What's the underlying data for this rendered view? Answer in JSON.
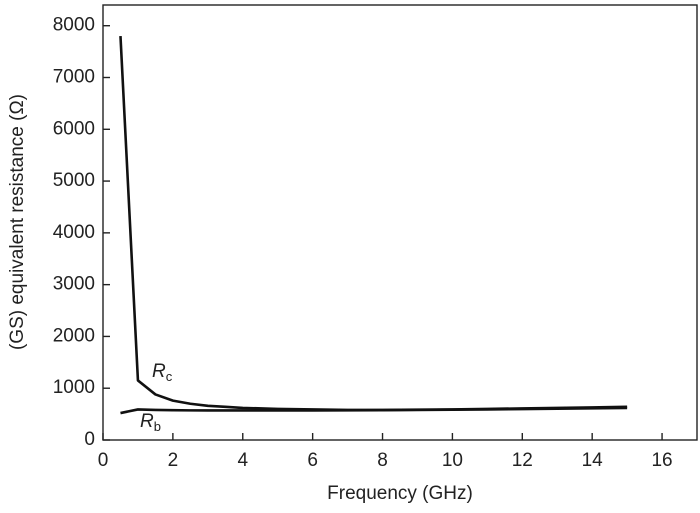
{
  "chart_data": {
    "type": "line",
    "xlabel": "Frequency (GHz)",
    "ylabel": "(GS) equivalent resistance (Ω)",
    "x": [
      0.5,
      1,
      1.5,
      2,
      2.5,
      3,
      3.5,
      4,
      5,
      6,
      7,
      8,
      9,
      10,
      11,
      12,
      13,
      14,
      15
    ],
    "series": [
      {
        "color": "#111111",
        "values": [
          7800,
          1150,
          880,
          760,
          700,
          660,
          640,
          620,
          600,
          590,
          580,
          580,
          585,
          590,
          600,
          610,
          620,
          630,
          640
        ]
      },
      {
        "color": "#111111",
        "values": [
          520,
          590,
          580,
          575,
          572,
          570,
          570,
          570,
          570,
          570,
          572,
          575,
          580,
          585,
          590,
          598,
          605,
          612,
          620
        ]
      }
    ],
    "annotations": [
      {
        "text": "R",
        "subscript": "c"
      },
      {
        "text": "R",
        "subscript": "b"
      }
    ],
    "xlim": [
      0,
      17
    ],
    "xticks": [
      0,
      2,
      4,
      6,
      8,
      10,
      12,
      14,
      16
    ],
    "ylim": [
      0,
      8400
    ],
    "yticks": [
      0,
      1000,
      2000,
      3000,
      4000,
      5000,
      6000,
      7000,
      8000
    ]
  }
}
